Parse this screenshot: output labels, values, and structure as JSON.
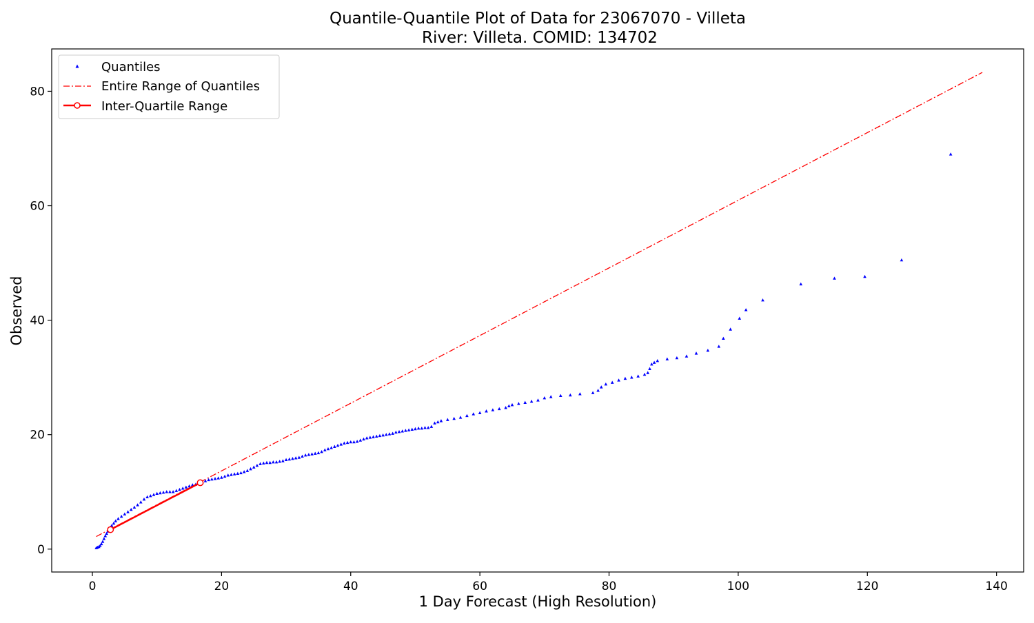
{
  "colors": {
    "quantiles": "#0000ff",
    "entire_range": "#ff0000",
    "iqr": "#ff0000",
    "axes": "#000000",
    "background": "#ffffff"
  },
  "chart_data": {
    "type": "scatter",
    "title": "Quantile-Quantile Plot of Data for 23067070 - Villeta",
    "subtitle": "River: Villeta. COMID: 134702",
    "xlabel": "1 Day Forecast (High Resolution)",
    "ylabel": "Observed",
    "xlim": [
      -6.3,
      144.2
    ],
    "ylim": [
      -4.0,
      87.4
    ],
    "xticks": [
      0,
      20,
      40,
      60,
      80,
      100,
      120,
      140
    ],
    "yticks": [
      0,
      20,
      40,
      60,
      80
    ],
    "grid": false,
    "legend_position": "top-left",
    "legend": [
      {
        "label": "Quantiles",
        "style": "triangle-marker"
      },
      {
        "label": "Entire Range of Quantiles",
        "style": "dash-dot-line"
      },
      {
        "label": "Inter-Quartile Range",
        "style": "solid-line-circle-markers"
      }
    ],
    "series": [
      {
        "name": "Quantiles",
        "type": "scatter",
        "marker": "triangle",
        "points": [
          [
            0.6,
            0.2
          ],
          [
            0.8,
            0.3
          ],
          [
            1.0,
            0.4
          ],
          [
            1.2,
            0.6
          ],
          [
            1.4,
            0.9
          ],
          [
            1.6,
            1.3
          ],
          [
            1.8,
            1.8
          ],
          [
            2.0,
            2.3
          ],
          [
            2.2,
            2.7
          ],
          [
            2.4,
            3.1
          ],
          [
            2.6,
            3.5
          ],
          [
            2.8,
            3.8
          ],
          [
            3.0,
            4.1
          ],
          [
            3.3,
            4.5
          ],
          [
            3.6,
            4.9
          ],
          [
            4.0,
            5.3
          ],
          [
            4.5,
            5.7
          ],
          [
            5.0,
            6.1
          ],
          [
            5.5,
            6.5
          ],
          [
            6.0,
            6.9
          ],
          [
            6.5,
            7.3
          ],
          [
            7.0,
            7.7
          ],
          [
            7.5,
            8.2
          ],
          [
            8.0,
            8.7
          ],
          [
            8.5,
            9.1
          ],
          [
            9.0,
            9.3
          ],
          [
            9.5,
            9.5
          ],
          [
            10.0,
            9.7
          ],
          [
            10.5,
            9.8
          ],
          [
            11.0,
            9.9
          ],
          [
            11.5,
            10.0
          ],
          [
            12.0,
            10.0
          ],
          [
            12.5,
            10.0
          ],
          [
            13.0,
            10.2
          ],
          [
            13.5,
            10.4
          ],
          [
            14.0,
            10.6
          ],
          [
            14.5,
            10.8
          ],
          [
            15.0,
            11.0
          ],
          [
            15.5,
            11.2
          ],
          [
            16.0,
            11.3
          ],
          [
            16.5,
            11.5
          ],
          [
            17.0,
            11.7
          ],
          [
            17.5,
            11.9
          ],
          [
            18.0,
            12.1
          ],
          [
            18.5,
            12.2
          ],
          [
            19.0,
            12.3
          ],
          [
            19.5,
            12.4
          ],
          [
            20.0,
            12.5
          ],
          [
            20.5,
            12.7
          ],
          [
            21.0,
            12.9
          ],
          [
            21.5,
            13.0
          ],
          [
            22.0,
            13.1
          ],
          [
            22.5,
            13.2
          ],
          [
            23.0,
            13.3
          ],
          [
            23.5,
            13.5
          ],
          [
            24.0,
            13.7
          ],
          [
            24.5,
            14.0
          ],
          [
            25.0,
            14.3
          ],
          [
            25.5,
            14.6
          ],
          [
            26.0,
            14.9
          ],
          [
            26.5,
            15.0
          ],
          [
            27.0,
            15.1
          ],
          [
            27.5,
            15.1
          ],
          [
            28.0,
            15.2
          ],
          [
            28.5,
            15.2
          ],
          [
            29.0,
            15.3
          ],
          [
            29.5,
            15.4
          ],
          [
            30.0,
            15.6
          ],
          [
            30.5,
            15.7
          ],
          [
            31.0,
            15.8
          ],
          [
            31.5,
            15.9
          ],
          [
            32.0,
            16.0
          ],
          [
            32.5,
            16.2
          ],
          [
            33.0,
            16.4
          ],
          [
            33.5,
            16.5
          ],
          [
            34.0,
            16.6
          ],
          [
            34.5,
            16.7
          ],
          [
            35.0,
            16.8
          ],
          [
            35.5,
            17.0
          ],
          [
            36.0,
            17.3
          ],
          [
            36.5,
            17.5
          ],
          [
            37.0,
            17.7
          ],
          [
            37.5,
            17.9
          ],
          [
            38.0,
            18.1
          ],
          [
            38.5,
            18.3
          ],
          [
            39.0,
            18.5
          ],
          [
            39.5,
            18.6
          ],
          [
            40.0,
            18.7
          ],
          [
            40.5,
            18.7
          ],
          [
            41.0,
            18.8
          ],
          [
            41.5,
            19.0
          ],
          [
            42.0,
            19.2
          ],
          [
            42.5,
            19.4
          ],
          [
            43.0,
            19.5
          ],
          [
            43.5,
            19.6
          ],
          [
            44.0,
            19.7
          ],
          [
            44.5,
            19.8
          ],
          [
            45.0,
            19.9
          ],
          [
            45.5,
            20.0
          ],
          [
            46.0,
            20.1
          ],
          [
            46.5,
            20.2
          ],
          [
            47.0,
            20.4
          ],
          [
            47.5,
            20.5
          ],
          [
            48.0,
            20.6
          ],
          [
            48.5,
            20.7
          ],
          [
            49.0,
            20.8
          ],
          [
            49.5,
            20.9
          ],
          [
            50.0,
            21.0
          ],
          [
            50.5,
            21.1
          ],
          [
            51.0,
            21.1
          ],
          [
            51.5,
            21.2
          ],
          [
            52.0,
            21.2
          ],
          [
            52.5,
            21.4
          ],
          [
            53.0,
            22.0
          ],
          [
            53.5,
            22.2
          ],
          [
            54.0,
            22.4
          ],
          [
            55.0,
            22.6
          ],
          [
            56.0,
            22.8
          ],
          [
            57.0,
            23.0
          ],
          [
            58.0,
            23.3
          ],
          [
            59.0,
            23.6
          ],
          [
            60.0,
            23.8
          ],
          [
            61.0,
            24.1
          ],
          [
            62.0,
            24.3
          ],
          [
            63.0,
            24.5
          ],
          [
            64.0,
            24.7
          ],
          [
            64.5,
            25.0
          ],
          [
            65.0,
            25.2
          ],
          [
            66.0,
            25.4
          ],
          [
            67.0,
            25.6
          ],
          [
            68.0,
            25.8
          ],
          [
            69.0,
            26.0
          ],
          [
            70.0,
            26.4
          ],
          [
            71.0,
            26.6
          ],
          [
            72.5,
            26.8
          ],
          [
            74.0,
            26.9
          ],
          [
            75.5,
            27.1
          ],
          [
            77.5,
            27.3
          ],
          [
            78.3,
            27.7
          ],
          [
            78.8,
            28.3
          ],
          [
            79.5,
            28.8
          ],
          [
            80.5,
            29.1
          ],
          [
            81.5,
            29.5
          ],
          [
            82.5,
            29.8
          ],
          [
            83.5,
            30.0
          ],
          [
            84.5,
            30.2
          ],
          [
            85.5,
            30.5
          ],
          [
            86.0,
            30.8
          ],
          [
            86.3,
            31.5
          ],
          [
            86.6,
            32.3
          ],
          [
            87.0,
            32.6
          ],
          [
            87.5,
            32.9
          ],
          [
            89.0,
            33.2
          ],
          [
            90.5,
            33.4
          ],
          [
            92.0,
            33.7
          ],
          [
            93.5,
            34.2
          ],
          [
            95.3,
            34.7
          ],
          [
            97.0,
            35.4
          ],
          [
            97.7,
            36.8
          ],
          [
            98.8,
            38.4
          ],
          [
            100.2,
            40.3
          ],
          [
            101.2,
            41.8
          ],
          [
            103.8,
            43.5
          ],
          [
            109.7,
            46.3
          ],
          [
            114.9,
            47.3
          ],
          [
            119.6,
            47.6
          ],
          [
            125.3,
            50.5
          ],
          [
            132.9,
            69.0
          ]
        ]
      },
      {
        "name": "Entire Range of Quantiles",
        "type": "line",
        "style": "dash-dot",
        "points": [
          [
            0.6,
            2.2
          ],
          [
            137.8,
            83.3
          ]
        ]
      },
      {
        "name": "Inter-Quartile Range",
        "type": "line",
        "style": "solid",
        "points": [
          [
            2.8,
            3.4
          ],
          [
            16.7,
            11.6
          ]
        ]
      }
    ]
  }
}
